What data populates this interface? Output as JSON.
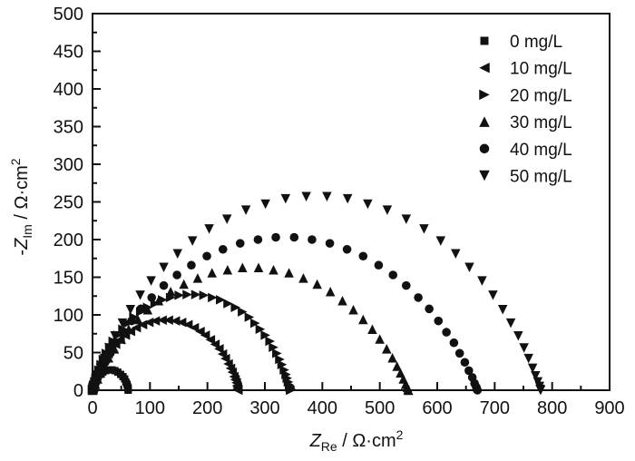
{
  "figure": {
    "background": "#ffffff",
    "ink_color": "#111111"
  },
  "chart_data": {
    "type": "scatter",
    "title": "",
    "xlabel": "Z_Re / Ω·cm²",
    "ylabel": "-Z_Im / Ω·cm²",
    "xlabel_parts": [
      {
        "text": "Z",
        "style": "italic"
      },
      {
        "text": "Re",
        "style": "sub"
      },
      {
        "text": " / ",
        "style": "normal"
      },
      {
        "text": "Ω·cm",
        "style": "normal"
      },
      {
        "text": "2",
        "style": "sup"
      }
    ],
    "ylabel_parts": [
      {
        "text": "-",
        "style": "normal"
      },
      {
        "text": "Z",
        "style": "italic"
      },
      {
        "text": "Im",
        "style": "sub"
      },
      {
        "text": " / ",
        "style": "normal"
      },
      {
        "text": "Ω·cm",
        "style": "normal"
      },
      {
        "text": "2",
        "style": "sup"
      }
    ],
    "xlim": [
      0,
      900
    ],
    "ylim": [
      0,
      500
    ],
    "x_major_ticks": [
      0,
      100,
      200,
      300,
      400,
      500,
      600,
      700,
      800,
      900
    ],
    "x_tick_labels": [
      "0",
      "100",
      "200",
      "300",
      "400",
      "500",
      "600",
      "700",
      "800",
      "900"
    ],
    "x_minor_step": 50,
    "y_major_ticks": [
      0,
      50,
      100,
      150,
      200,
      250,
      300,
      350,
      400,
      450,
      500
    ],
    "y_tick_labels": [
      "0",
      "50",
      "100",
      "150",
      "200",
      "250",
      "300",
      "350",
      "400",
      "450",
      "500"
    ],
    "y_minor_step": 25,
    "grid": false,
    "legend_position": "top-right",
    "marker_color": "#111111",
    "series": [
      {
        "name": "0 mg/L",
        "marker": "square",
        "low_freq_intercept": 62,
        "peak": {
          "x": 31,
          "y": 27
        },
        "points": [
          [
            0,
            0
          ],
          [
            0,
            1
          ],
          [
            1,
            3
          ],
          [
            1,
            5
          ],
          [
            2,
            8
          ],
          [
            4,
            11
          ],
          [
            6,
            15
          ],
          [
            9,
            18
          ],
          [
            13,
            21
          ],
          [
            18,
            24
          ],
          [
            23,
            26
          ],
          [
            28,
            27
          ],
          [
            34,
            27
          ],
          [
            39,
            26
          ],
          [
            44,
            24
          ],
          [
            49,
            21
          ],
          [
            53,
            18
          ],
          [
            56,
            15
          ],
          [
            58,
            11
          ],
          [
            60,
            8
          ],
          [
            61,
            5
          ],
          [
            62,
            3
          ],
          [
            62,
            1
          ],
          [
            62,
            0
          ]
        ]
      },
      {
        "name": "10 mg/L",
        "marker": "triangle-left",
        "low_freq_intercept": 253,
        "peak": {
          "x": 127,
          "y": 93
        },
        "points": [
          [
            0,
            0
          ],
          [
            0,
            1
          ],
          [
            1,
            2
          ],
          [
            1,
            4
          ],
          [
            2,
            6
          ],
          [
            3,
            10
          ],
          [
            5,
            14
          ],
          [
            7,
            18
          ],
          [
            10,
            24
          ],
          [
            13,
            29
          ],
          [
            17,
            35
          ],
          [
            22,
            42
          ],
          [
            27,
            48
          ],
          [
            33,
            55
          ],
          [
            40,
            61
          ],
          [
            48,
            67
          ],
          [
            57,
            73
          ],
          [
            66,
            78
          ],
          [
            76,
            83
          ],
          [
            87,
            87
          ],
          [
            98,
            90
          ],
          [
            109,
            92
          ],
          [
            121,
            93
          ],
          [
            132,
            93
          ],
          [
            144,
            92
          ],
          [
            155,
            90
          ],
          [
            166,
            87
          ],
          [
            177,
            83
          ],
          [
            187,
            78
          ],
          [
            196,
            73
          ],
          [
            205,
            67
          ],
          [
            213,
            61
          ],
          [
            220,
            55
          ],
          [
            226,
            48
          ],
          [
            231,
            42
          ],
          [
            236,
            35
          ],
          [
            240,
            29
          ],
          [
            243,
            24
          ],
          [
            246,
            18
          ],
          [
            248,
            14
          ],
          [
            250,
            10
          ],
          [
            251,
            6
          ],
          [
            252,
            4
          ],
          [
            252,
            2
          ],
          [
            253,
            1
          ],
          [
            253,
            0
          ]
        ]
      },
      {
        "name": "20 mg/L",
        "marker": "triangle-right",
        "low_freq_intercept": 345,
        "peak": {
          "x": 173,
          "y": 127
        },
        "points": [
          [
            0,
            0
          ],
          [
            0,
            1
          ],
          [
            1,
            2
          ],
          [
            1,
            4
          ],
          [
            2,
            7
          ],
          [
            4,
            11
          ],
          [
            6,
            16
          ],
          [
            8,
            21
          ],
          [
            11,
            27
          ],
          [
            15,
            34
          ],
          [
            19,
            41
          ],
          [
            24,
            49
          ],
          [
            30,
            57
          ],
          [
            36,
            65
          ],
          [
            44,
            73
          ],
          [
            53,
            81
          ],
          [
            62,
            89
          ],
          [
            72,
            97
          ],
          [
            84,
            104
          ],
          [
            96,
            110
          ],
          [
            109,
            115
          ],
          [
            122,
            120
          ],
          [
            136,
            123
          ],
          [
            151,
            126
          ],
          [
            165,
            127
          ],
          [
            180,
            127
          ],
          [
            194,
            126
          ],
          [
            209,
            123
          ],
          [
            223,
            120
          ],
          [
            236,
            115
          ],
          [
            249,
            110
          ],
          [
            261,
            104
          ],
          [
            273,
            97
          ],
          [
            283,
            89
          ],
          [
            292,
            81
          ],
          [
            301,
            73
          ],
          [
            309,
            65
          ],
          [
            315,
            57
          ],
          [
            321,
            49
          ],
          [
            326,
            41
          ],
          [
            330,
            34
          ],
          [
            334,
            27
          ],
          [
            337,
            21
          ],
          [
            339,
            16
          ],
          [
            341,
            11
          ],
          [
            343,
            7
          ],
          [
            344,
            4
          ],
          [
            345,
            2
          ],
          [
            345,
            1
          ],
          [
            345,
            0
          ]
        ]
      },
      {
        "name": "30 mg/L",
        "marker": "triangle-up",
        "low_freq_intercept": 550,
        "peak": {
          "x": 275,
          "y": 163
        },
        "points": [
          [
            0,
            0
          ],
          [
            1,
            1
          ],
          [
            2,
            4
          ],
          [
            5,
            8
          ],
          [
            9,
            15
          ],
          [
            14,
            23
          ],
          [
            20,
            32
          ],
          [
            28,
            43
          ],
          [
            38,
            55
          ],
          [
            50,
            68
          ],
          [
            63,
            81
          ],
          [
            79,
            94
          ],
          [
            96,
            107
          ],
          [
            115,
            119
          ],
          [
            136,
            131
          ],
          [
            159,
            141
          ],
          [
            183,
            149
          ],
          [
            208,
            156
          ],
          [
            235,
            160
          ],
          [
            261,
            163
          ],
          [
            289,
            163
          ],
          [
            315,
            160
          ],
          [
            342,
            156
          ],
          [
            367,
            149
          ],
          [
            391,
            141
          ],
          [
            414,
            131
          ],
          [
            435,
            119
          ],
          [
            454,
            107
          ],
          [
            471,
            94
          ],
          [
            487,
            81
          ],
          [
            500,
            68
          ],
          [
            512,
            55
          ],
          [
            522,
            43
          ],
          [
            530,
            32
          ],
          [
            536,
            23
          ],
          [
            541,
            15
          ],
          [
            545,
            8
          ],
          [
            548,
            4
          ],
          [
            549,
            1
          ],
          [
            550,
            0
          ]
        ]
      },
      {
        "name": "40 mg/L",
        "marker": "circle",
        "low_freq_intercept": 670,
        "peak": {
          "x": 335,
          "y": 203
        },
        "points": [
          [
            0,
            0
          ],
          [
            1,
            1
          ],
          [
            2,
            4
          ],
          [
            5,
            9
          ],
          [
            9,
            17
          ],
          [
            15,
            26
          ],
          [
            22,
            37
          ],
          [
            31,
            49
          ],
          [
            41,
            63
          ],
          [
            54,
            77
          ],
          [
            68,
            92
          ],
          [
            84,
            108
          ],
          [
            103,
            123
          ],
          [
            124,
            139
          ],
          [
            147,
            153
          ],
          [
            172,
            166
          ],
          [
            199,
            178
          ],
          [
            227,
            187
          ],
          [
            257,
            195
          ],
          [
            288,
            200
          ],
          [
            319,
            203
          ],
          [
            351,
            203
          ],
          [
            382,
            200
          ],
          [
            413,
            195
          ],
          [
            443,
            187
          ],
          [
            471,
            178
          ],
          [
            498,
            166
          ],
          [
            523,
            153
          ],
          [
            546,
            139
          ],
          [
            567,
            123
          ],
          [
            586,
            108
          ],
          [
            602,
            92
          ],
          [
            616,
            77
          ],
          [
            629,
            63
          ],
          [
            639,
            49
          ],
          [
            648,
            37
          ],
          [
            655,
            26
          ],
          [
            661,
            17
          ],
          [
            665,
            9
          ],
          [
            668,
            4
          ],
          [
            669,
            1
          ],
          [
            670,
            0
          ]
        ]
      },
      {
        "name": "50 mg/L",
        "marker": "triangle-down",
        "low_freq_intercept": 780,
        "peak": {
          "x": 390,
          "y": 257
        },
        "points": [
          [
            0,
            0
          ],
          [
            1,
            1
          ],
          [
            2,
            5
          ],
          [
            5,
            11
          ],
          [
            9,
            19
          ],
          [
            14,
            29
          ],
          [
            21,
            42
          ],
          [
            29,
            56
          ],
          [
            39,
            72
          ],
          [
            52,
            89
          ],
          [
            66,
            107
          ],
          [
            83,
            126
          ],
          [
            102,
            145
          ],
          [
            124,
            163
          ],
          [
            148,
            181
          ],
          [
            174,
            198
          ],
          [
            203,
            214
          ],
          [
            234,
            227
          ],
          [
            267,
            239
          ],
          [
            301,
            247
          ],
          [
            336,
            254
          ],
          [
            372,
            257
          ],
          [
            408,
            257
          ],
          [
            444,
            254
          ],
          [
            479,
            247
          ],
          [
            513,
            239
          ],
          [
            546,
            227
          ],
          [
            577,
            214
          ],
          [
            606,
            198
          ],
          [
            632,
            181
          ],
          [
            656,
            163
          ],
          [
            678,
            145
          ],
          [
            697,
            126
          ],
          [
            714,
            107
          ],
          [
            728,
            89
          ],
          [
            741,
            72
          ],
          [
            751,
            56
          ],
          [
            759,
            42
          ],
          [
            766,
            29
          ],
          [
            771,
            19
          ],
          [
            775,
            11
          ],
          [
            778,
            5
          ],
          [
            779,
            1
          ],
          [
            780,
            0
          ]
        ]
      }
    ]
  }
}
